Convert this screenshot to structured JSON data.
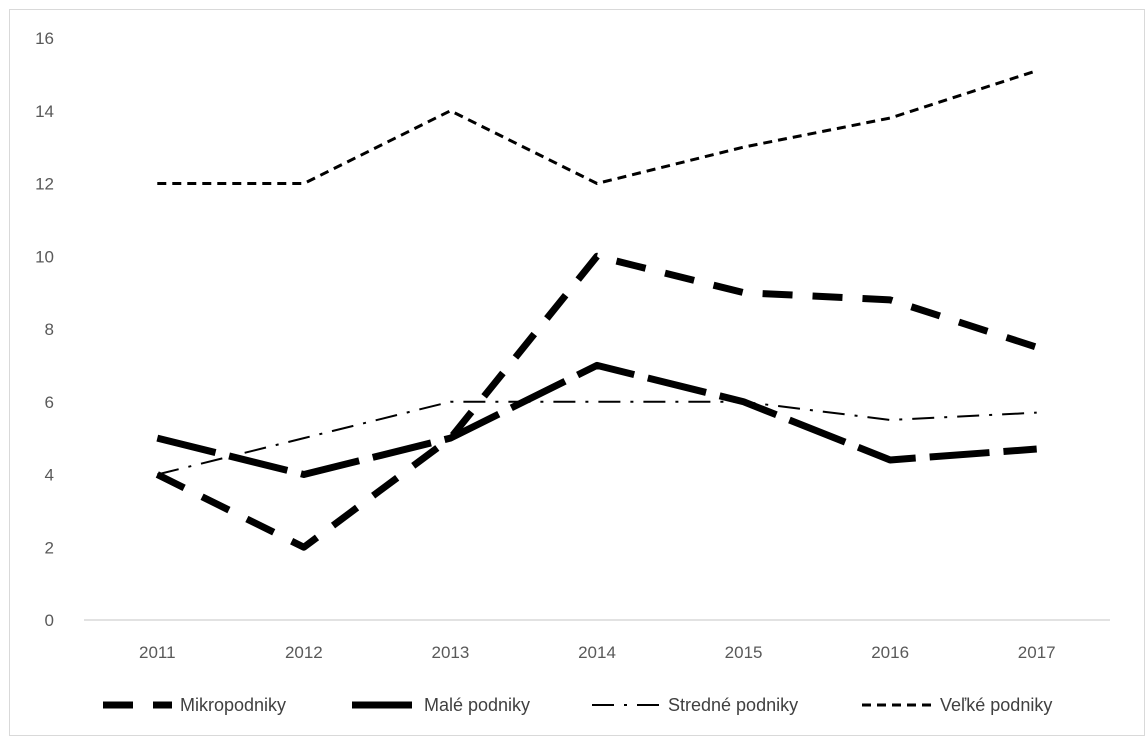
{
  "chart_data": {
    "type": "line",
    "x": [
      "2011",
      "2012",
      "2013",
      "2014",
      "2015",
      "2016",
      "2017"
    ],
    "ylim": [
      0,
      16
    ],
    "yticks": [
      "0",
      "2",
      "4",
      "6",
      "8",
      "10",
      "12",
      "14",
      "16"
    ],
    "grid": false,
    "legend": "bottom",
    "series": [
      {
        "name": "Mikropodniky",
        "values": [
          4,
          2,
          5,
          10,
          9,
          8.8,
          7.5
        ],
        "dash": "long-dash",
        "width": 7
      },
      {
        "name": "Malé podniky",
        "values": [
          5,
          4,
          5,
          7,
          6,
          4.4,
          4.7
        ],
        "dash": "solid-long",
        "width": 7
      },
      {
        "name": "Stredné podniky",
        "values": [
          4,
          5,
          6,
          6,
          6,
          5.5,
          5.7
        ],
        "dash": "dash-dot",
        "width": 2
      },
      {
        "name": "Veľké podniky",
        "values": [
          12,
          12,
          14,
          12,
          13,
          13.8,
          15.1
        ],
        "dash": "short-dash",
        "width": 3
      }
    ],
    "colors": {
      "line": "#000000",
      "axis": "#d9d9d9",
      "tick_text": "#595959"
    }
  }
}
